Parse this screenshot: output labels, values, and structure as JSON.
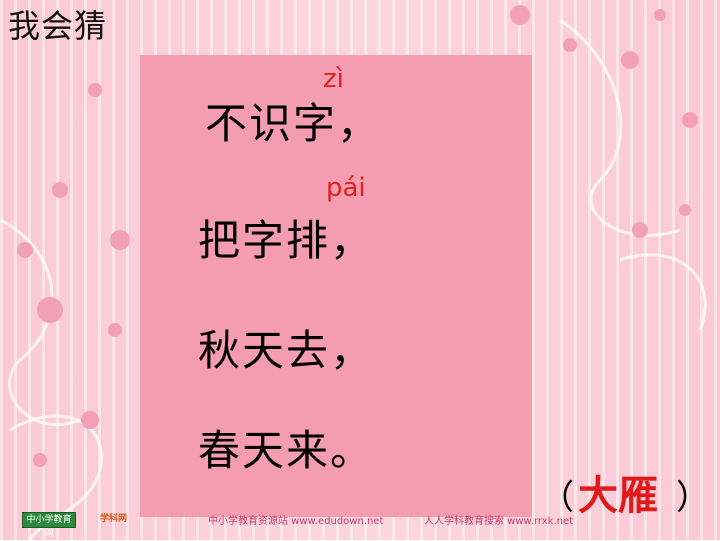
{
  "slide": {
    "title": "我会猜",
    "riddle": {
      "pinyin1": "zì",
      "line1": "不识字，",
      "pinyin2": "pái",
      "line2": "把字排，",
      "line3": "秋天去，",
      "line4": "春天来。"
    },
    "answer": {
      "open": "（",
      "word": "大雁",
      "close": "）"
    }
  },
  "footer": {
    "logo1_text": "中小学教育网",
    "logo2_text": "学科网",
    "text1": "中小学教育资源站 www.edudown.net",
    "text2": "人人学科教育搜索 www.rrxk.net"
  },
  "colors": {
    "card": "#f59db0",
    "pinyin": "#e0201f",
    "answer": "#e01a1a"
  }
}
